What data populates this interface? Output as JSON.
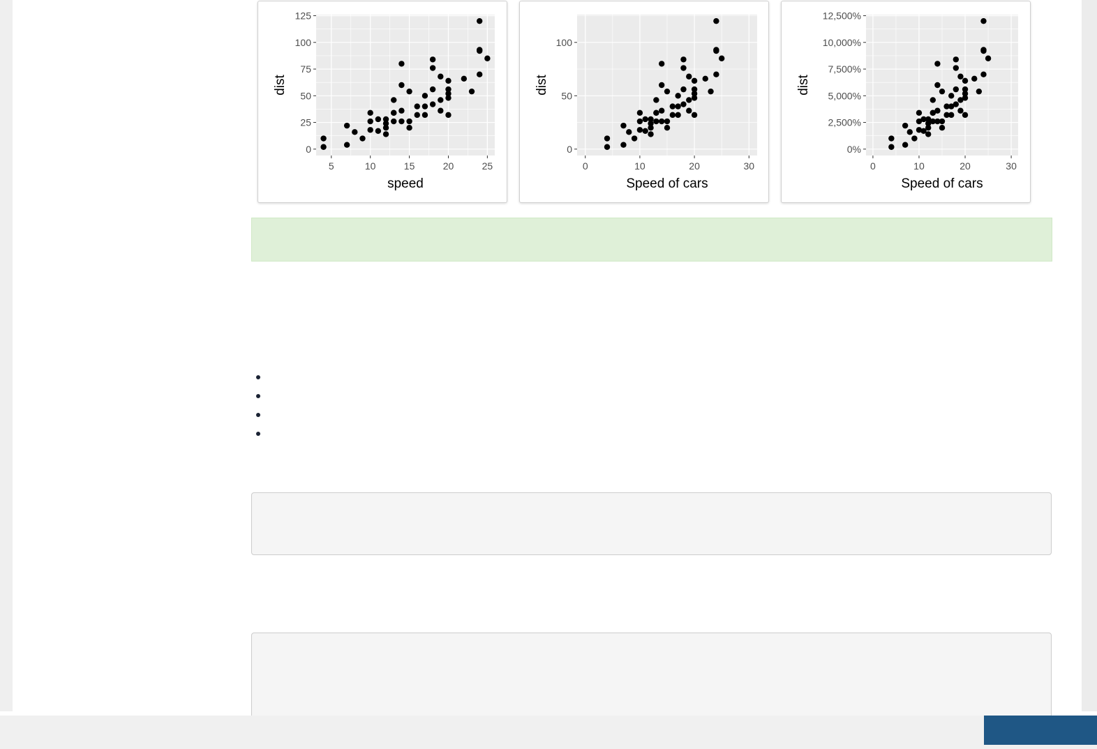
{
  "colors": {
    "panel_bg": "#ebebeb",
    "grid": "#ffffff",
    "point": "#000000",
    "alert_bg": "#dff0d8",
    "code_bg": "#f5f5f5",
    "footer_button": "#1f5785"
  },
  "cars": {
    "speed": [
      4,
      4,
      7,
      7,
      8,
      9,
      10,
      10,
      10,
      11,
      11,
      12,
      12,
      12,
      12,
      13,
      13,
      13,
      13,
      14,
      14,
      14,
      14,
      15,
      15,
      15,
      16,
      16,
      17,
      17,
      17,
      18,
      18,
      18,
      18,
      19,
      19,
      19,
      20,
      20,
      20,
      20,
      20,
      22,
      23,
      24,
      24,
      24,
      24,
      25
    ],
    "dist": [
      2,
      10,
      4,
      22,
      16,
      10,
      18,
      26,
      34,
      17,
      28,
      14,
      20,
      24,
      28,
      26,
      34,
      34,
      46,
      26,
      36,
      60,
      80,
      20,
      26,
      54,
      32,
      40,
      32,
      40,
      50,
      42,
      56,
      76,
      84,
      36,
      46,
      68,
      32,
      48,
      52,
      56,
      64,
      66,
      54,
      70,
      92,
      93,
      120,
      85
    ]
  },
  "chart_data": [
    {
      "type": "scatter",
      "xlabel": "speed",
      "ylabel": "dist",
      "xlim": [
        3.05,
        25.95
      ],
      "ylim": [
        -6,
        126
      ],
      "xticks": [
        5,
        10,
        15,
        20,
        25
      ],
      "xtick_labels": [
        "5",
        "10",
        "15",
        "20",
        "25"
      ],
      "yticks": [
        0,
        25,
        50,
        75,
        100,
        125
      ],
      "ytick_labels": [
        "0",
        "25",
        "50",
        "75",
        "100",
        "125"
      ],
      "y_scale": 1,
      "grid": true
    },
    {
      "type": "scatter",
      "xlabel": "Speed of cars",
      "ylabel": "dist",
      "xlim": [
        -1.5,
        31.5
      ],
      "ylim": [
        -6,
        126
      ],
      "xticks": [
        0,
        10,
        20,
        30
      ],
      "xtick_labels": [
        "0",
        "10",
        "20",
        "30"
      ],
      "yticks": [
        0,
        50,
        100
      ],
      "ytick_labels": [
        "0",
        "50",
        "100"
      ],
      "y_scale": 1,
      "grid": true
    },
    {
      "type": "scatter",
      "xlabel": "Speed of cars",
      "ylabel": "dist",
      "xlim": [
        -1.5,
        31.5
      ],
      "ylim": [
        -600,
        12600
      ],
      "xticks": [
        0,
        10,
        20,
        30
      ],
      "xtick_labels": [
        "0",
        "10",
        "20",
        "30"
      ],
      "yticks": [
        0,
        2500,
        5000,
        7500,
        10000,
        12500
      ],
      "ytick_labels": [
        "0%",
        "2,500%",
        "5,000%",
        "7,500%",
        "10,000%",
        "12,500%"
      ],
      "y_scale": 100,
      "grid": true
    }
  ],
  "bullets": [
    "",
    "",
    "",
    ""
  ]
}
